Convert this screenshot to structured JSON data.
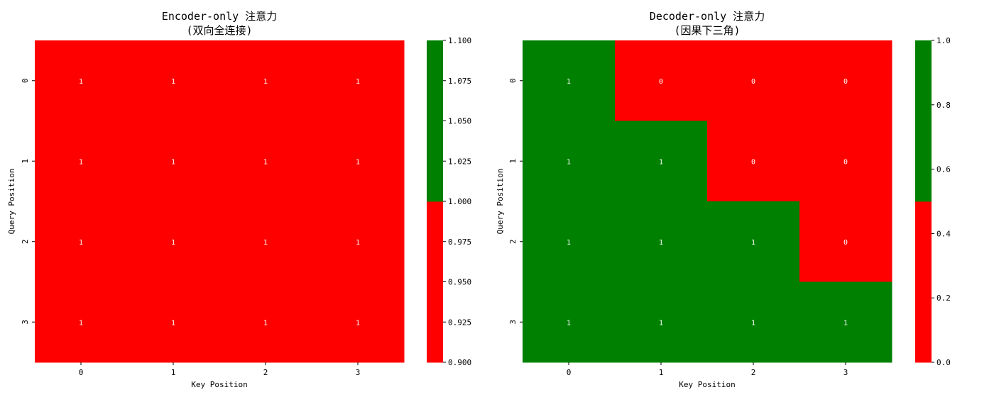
{
  "colors": {
    "green": "#008000",
    "red": "#ff0000"
  },
  "chart_data": [
    {
      "type": "heatmap",
      "title": "Encoder-only 注意力",
      "subtitle": "(双向全连接)",
      "xlabel": "Key Position",
      "ylabel": "Query Position",
      "x_ticks": [
        "0",
        "1",
        "2",
        "3"
      ],
      "y_ticks": [
        "0",
        "1",
        "2",
        "3"
      ],
      "matrix": [
        [
          1,
          1,
          1,
          1
        ],
        [
          1,
          1,
          1,
          1
        ],
        [
          1,
          1,
          1,
          1
        ],
        [
          1,
          1,
          1,
          1
        ]
      ],
      "cmap": [
        "#ff0000",
        "#008000"
      ],
      "vmin": 0.9,
      "vmax": 1.1,
      "colorbar_ticks": [
        "0.900",
        "0.925",
        "0.950",
        "0.975",
        "1.000",
        "1.025",
        "1.050",
        "1.075",
        "1.100"
      ],
      "colorbar_values": [
        0.9,
        0.925,
        0.95,
        0.975,
        1.0,
        1.025,
        1.05,
        1.075,
        1.1
      ]
    },
    {
      "type": "heatmap",
      "title": "Decoder-only 注意力",
      "subtitle": "(因果下三角)",
      "xlabel": "Key Position",
      "ylabel": "Query Position",
      "x_ticks": [
        "0",
        "1",
        "2",
        "3"
      ],
      "y_ticks": [
        "0",
        "1",
        "2",
        "3"
      ],
      "matrix": [
        [
          1,
          0,
          0,
          0
        ],
        [
          1,
          1,
          0,
          0
        ],
        [
          1,
          1,
          1,
          0
        ],
        [
          1,
          1,
          1,
          1
        ]
      ],
      "cmap": [
        "#ff0000",
        "#008000"
      ],
      "vmin": 0.0,
      "vmax": 1.0,
      "colorbar_ticks": [
        "0.0",
        "0.2",
        "0.4",
        "0.6",
        "0.8",
        "1.0"
      ],
      "colorbar_values": [
        0.0,
        0.2,
        0.4,
        0.6,
        0.8,
        1.0
      ]
    }
  ]
}
